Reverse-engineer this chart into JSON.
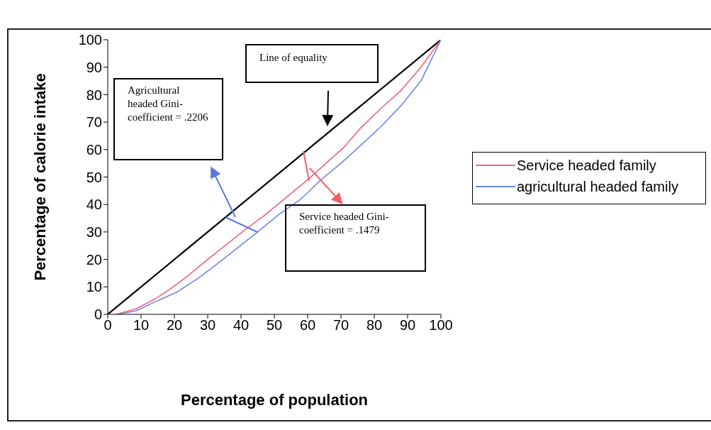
{
  "chart_data": {
    "type": "line",
    "xlabel": "Percentage of population",
    "ylabel": "Percentage of calorie intake",
    "xlim": [
      0,
      100
    ],
    "ylim": [
      0,
      100
    ],
    "xticks": [
      0,
      10,
      20,
      30,
      40,
      50,
      60,
      70,
      80,
      90,
      100
    ],
    "yticks": [
      0,
      10,
      20,
      30,
      40,
      50,
      60,
      70,
      80,
      90,
      100
    ],
    "grid": false,
    "legend": "right",
    "marker": "none",
    "line_style": "solid",
    "series": [
      {
        "color": "#000000",
        "x": [
          0,
          100
        ],
        "values": [
          0,
          100
        ]
      },
      {
        "name": "Service headed family",
        "color": "#f06080",
        "x": [
          2.5,
          8.5,
          14.2,
          18.5,
          24,
          30,
          35.6,
          41,
          47,
          54,
          60,
          65.5,
          71,
          76,
          82,
          88,
          94,
          100
        ],
        "values": [
          0,
          2,
          5.6,
          9,
          14,
          20,
          25.4,
          30.6,
          36,
          43,
          49,
          55,
          61,
          68,
          75,
          81.5,
          90,
          100
        ]
      },
      {
        "name": "agricultural headed family",
        "color": "#6f86e8",
        "x": [
          3,
          8.5,
          15,
          20.6,
          27,
          33,
          38.4,
          45,
          51,
          58,
          64,
          70,
          76,
          82.5,
          88,
          94,
          100
        ],
        "values": [
          0,
          1.3,
          5,
          8,
          13,
          18.5,
          23.7,
          30,
          36,
          42,
          49,
          55,
          61.6,
          69,
          76,
          85,
          100
        ]
      }
    ],
    "annotations": [
      "Line of equality",
      "Agricultural headed Gini-coefficient = .2206",
      "Service headed Gini-coefficient = .1479"
    ]
  }
}
